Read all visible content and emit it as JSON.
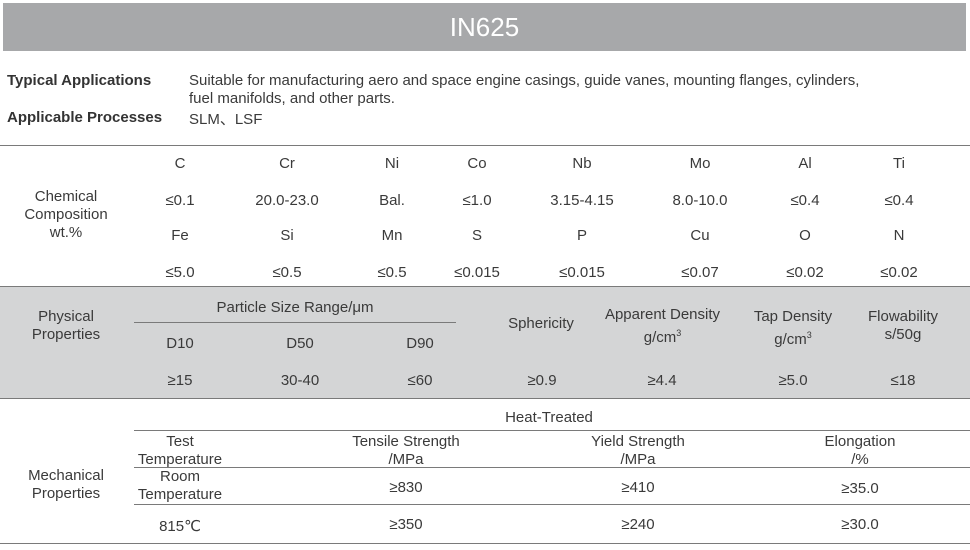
{
  "title": "IN625",
  "info": {
    "applications_label": "Typical Applications",
    "applications_line1": "Suitable for manufacturing aero and space engine casings, guide vanes, mounting flanges, cylinders,",
    "applications_line2": "fuel manifolds, and other parts.",
    "processes_label": "Applicable Processes",
    "processes_value": "SLM、LSF"
  },
  "chemical": {
    "label": [
      "Chemical",
      "Composition",
      "wt.%"
    ],
    "row1_elements": [
      "C",
      "Cr",
      "Ni",
      "Co",
      "Nb",
      "Mo",
      "Al",
      "Ti"
    ],
    "row1_values": [
      "≤0.1",
      "20.0-23.0",
      "Bal.",
      "≤1.0",
      "3.15-4.15",
      "8.0-10.0",
      "≤0.4",
      "≤0.4"
    ],
    "row2_elements": [
      "Fe",
      "Si",
      "Mn",
      "S",
      "P",
      "Cu",
      "O",
      "N"
    ],
    "row2_values": [
      "≤5.0",
      "≤0.5",
      "≤0.5",
      "≤0.015",
      "≤0.015",
      "≤0.07",
      "≤0.02",
      "≤0.02"
    ]
  },
  "physical": {
    "label": [
      "Physical",
      "Properties"
    ],
    "psr_header": "Particle Size Range/μm",
    "d10": "D10",
    "d50": "D50",
    "d90": "D90",
    "sphericity": "Sphericity",
    "apparent_density": "Apparent Density",
    "apparent_unit": "g/cm",
    "tap_density": "Tap Density",
    "tap_unit": "g/cm",
    "unit_exp": "3",
    "flowability": "Flowability",
    "flow_unit": "s/50g",
    "values": [
      "≥15",
      "30-40",
      "≤60",
      "≥0.9",
      "≥4.4",
      "≥5.0",
      "≤18"
    ]
  },
  "mechanical": {
    "label": [
      "Mechanical",
      "Properties"
    ],
    "heat_treated": "Heat-Treated",
    "test_temp": [
      "Test",
      "Temperature"
    ],
    "tensile": [
      "Tensile Strength",
      "/MPa"
    ],
    "yield": [
      "Yield Strength",
      "/MPa"
    ],
    "elongation": [
      "Elongation",
      "/%"
    ],
    "row1_temp": [
      "Room",
      "Temperature"
    ],
    "row1_values": [
      "≥830",
      "≥410",
      "≥35.0"
    ],
    "row2_temp": "815℃",
    "row2_values": [
      "≥350",
      "≥240",
      "≥30.0"
    ]
  }
}
